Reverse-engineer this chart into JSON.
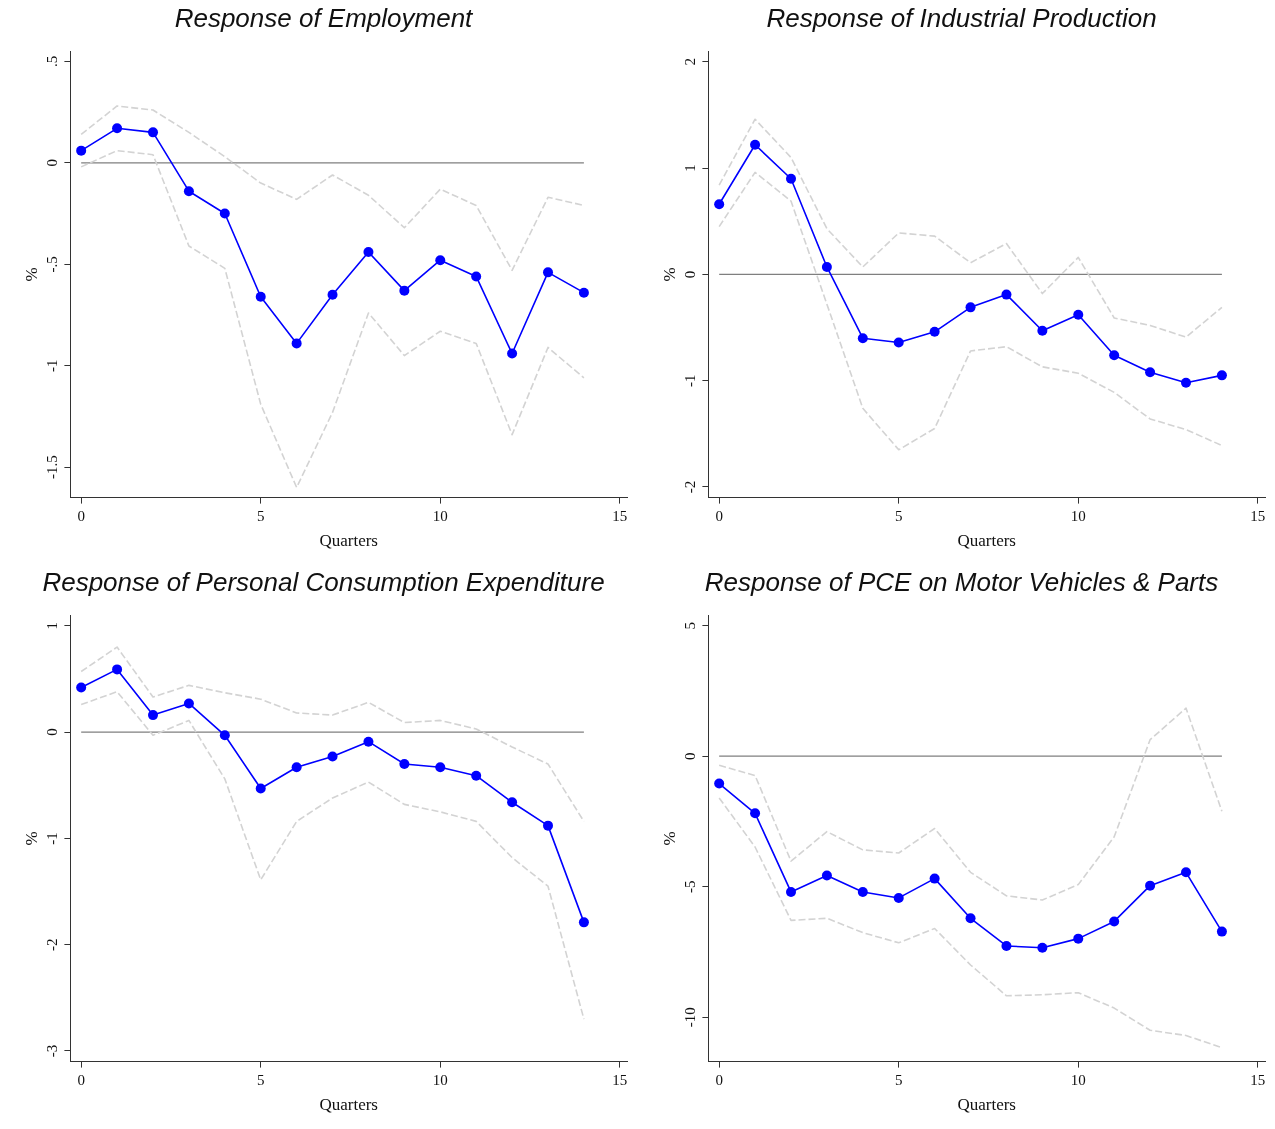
{
  "chart_data": [
    {
      "type": "line",
      "title": "Response of Employment",
      "xlabel": "Quarters",
      "ylabel": "%",
      "x": [
        0,
        1,
        2,
        3,
        4,
        5,
        6,
        7,
        8,
        9,
        10,
        11,
        12,
        13,
        14
      ],
      "xlim": [
        -0.3,
        15.2
      ],
      "xticks": [
        0,
        5,
        10,
        15
      ],
      "ylim": [
        -1.65,
        0.55
      ],
      "yticks": [
        {
          "value": -1.5,
          "label": "-1.5"
        },
        {
          "value": -1,
          "label": "-1"
        },
        {
          "value": -0.5,
          "label": "-.5"
        },
        {
          "value": 0,
          "label": "0"
        },
        {
          "value": 0.5,
          "label": ".5"
        }
      ],
      "grid": false,
      "legend": false,
      "ref_lines": [
        {
          "axis": "y",
          "value": 0,
          "color": "#7f7f7f"
        }
      ],
      "series": [
        {
          "color": "#d3d3d3",
          "line_style": "dashed",
          "marker": "none",
          "values": [
            0.14,
            0.28,
            0.26,
            0.15,
            0.03,
            -0.1,
            -0.18,
            -0.06,
            -0.16,
            -0.32,
            -0.13,
            -0.21,
            -0.53,
            -0.17,
            -0.21
          ]
        },
        {
          "color": "#d3d3d3",
          "line_style": "dashed",
          "marker": "none",
          "values": [
            -0.02,
            0.06,
            0.04,
            -0.41,
            -0.52,
            -1.19,
            -1.6,
            -1.23,
            -0.74,
            -0.95,
            -0.83,
            -0.89,
            -1.34,
            -0.91,
            -1.06
          ]
        },
        {
          "color": "#0000ff",
          "line_style": "solid",
          "marker": "circle",
          "values": [
            0.06,
            0.17,
            0.15,
            -0.14,
            -0.25,
            -0.66,
            -0.89,
            -0.65,
            -0.44,
            -0.63,
            -0.48,
            -0.56,
            -0.94,
            -0.54,
            -0.64
          ]
        }
      ]
    },
    {
      "type": "line",
      "title": "Response of Industrial Production",
      "xlabel": "Quarters",
      "ylabel": "%",
      "x": [
        0,
        1,
        2,
        3,
        4,
        5,
        6,
        7,
        8,
        9,
        10,
        11,
        12,
        13,
        14
      ],
      "xlim": [
        -0.3,
        15.2
      ],
      "xticks": [
        0,
        5,
        10,
        15
      ],
      "ylim": [
        -2.1,
        2.1
      ],
      "yticks": [
        -2,
        -1,
        0,
        1,
        2
      ],
      "grid": false,
      "legend": false,
      "ref_lines": [
        {
          "axis": "y",
          "value": 0,
          "color": "#7f7f7f"
        }
      ],
      "series": [
        {
          "color": "#d3d3d3",
          "line_style": "dashed",
          "marker": "none",
          "values": [
            0.84,
            1.46,
            1.1,
            0.43,
            0.07,
            0.39,
            0.36,
            0.11,
            0.29,
            -0.18,
            0.16,
            -0.41,
            -0.48,
            -0.59,
            -0.31
          ]
        },
        {
          "color": "#d3d3d3",
          "line_style": "dashed",
          "marker": "none",
          "values": [
            0.45,
            0.96,
            0.69,
            -0.28,
            -1.26,
            -1.65,
            -1.45,
            -0.72,
            -0.68,
            -0.87,
            -0.93,
            -1.11,
            -1.36,
            -1.46,
            -1.61
          ]
        },
        {
          "color": "#0000ff",
          "line_style": "solid",
          "marker": "circle",
          "values": [
            0.66,
            1.22,
            0.9,
            0.07,
            -0.6,
            -0.64,
            -0.54,
            -0.31,
            -0.19,
            -0.53,
            -0.38,
            -0.76,
            -0.92,
            -1.02,
            -0.95
          ]
        }
      ]
    },
    {
      "type": "line",
      "title": "Response of Personal Consumption Expenditure",
      "xlabel": "Quarters",
      "ylabel": "%",
      "x": [
        0,
        1,
        2,
        3,
        4,
        5,
        6,
        7,
        8,
        9,
        10,
        11,
        12,
        13,
        14
      ],
      "xlim": [
        -0.3,
        15.2
      ],
      "xticks": [
        0,
        5,
        10,
        15
      ],
      "ylim": [
        -3.1,
        1.1
      ],
      "yticks": [
        -3,
        -2,
        -1,
        0,
        1
      ],
      "grid": false,
      "legend": false,
      "ref_lines": [
        {
          "axis": "y",
          "value": 0,
          "color": "#7f7f7f"
        }
      ],
      "series": [
        {
          "color": "#d3d3d3",
          "line_style": "dashed",
          "marker": "none",
          "values": [
            0.57,
            0.8,
            0.33,
            0.44,
            0.37,
            0.31,
            0.18,
            0.16,
            0.28,
            0.09,
            0.11,
            0.03,
            -0.14,
            -0.3,
            -0.84
          ]
        },
        {
          "color": "#d3d3d3",
          "line_style": "dashed",
          "marker": "none",
          "values": [
            0.26,
            0.38,
            -0.03,
            0.11,
            -0.44,
            -1.39,
            -0.84,
            -0.62,
            -0.47,
            -0.68,
            -0.75,
            -0.84,
            -1.18,
            -1.45,
            -2.7
          ]
        },
        {
          "color": "#0000ff",
          "line_style": "solid",
          "marker": "circle",
          "values": [
            0.42,
            0.59,
            0.16,
            0.27,
            -0.03,
            -0.53,
            -0.33,
            -0.23,
            -0.09,
            -0.3,
            -0.33,
            -0.41,
            -0.66,
            -0.88,
            -1.79
          ]
        }
      ]
    },
    {
      "type": "line",
      "title": "Response of PCE on Motor Vehicles & Parts",
      "xlabel": "Quarters",
      "ylabel": "%",
      "x": [
        0,
        1,
        2,
        3,
        4,
        5,
        6,
        7,
        8,
        9,
        10,
        11,
        12,
        13,
        14
      ],
      "xlim": [
        -0.3,
        15.2
      ],
      "xticks": [
        0,
        5,
        10,
        15
      ],
      "ylim": [
        -11.7,
        5.4
      ],
      "yticks": [
        -10,
        -5,
        0,
        5
      ],
      "grid": false,
      "legend": false,
      "ref_lines": [
        {
          "axis": "y",
          "value": 0,
          "color": "#7f7f7f"
        }
      ],
      "series": [
        {
          "color": "#d3d3d3",
          "line_style": "dashed",
          "marker": "none",
          "values": [
            -0.35,
            -0.74,
            -4.02,
            -2.89,
            -3.59,
            -3.71,
            -2.77,
            -4.45,
            -5.35,
            -5.51,
            -4.92,
            -3.09,
            0.63,
            1.84,
            -2.11
          ]
        },
        {
          "color": "#d3d3d3",
          "line_style": "dashed",
          "marker": "none",
          "values": [
            -1.6,
            -3.48,
            -6.29,
            -6.21,
            -6.76,
            -7.15,
            -6.6,
            -8.0,
            -9.18,
            -9.14,
            -9.06,
            -9.65,
            -10.5,
            -10.7,
            -11.17
          ]
        },
        {
          "color": "#0000ff",
          "line_style": "solid",
          "marker": "circle",
          "values": [
            -1.05,
            -2.19,
            -5.2,
            -4.57,
            -5.2,
            -5.43,
            -4.69,
            -6.21,
            -7.27,
            -7.34,
            -6.99,
            -6.33,
            -4.96,
            -4.45,
            -6.72
          ]
        }
      ]
    }
  ]
}
